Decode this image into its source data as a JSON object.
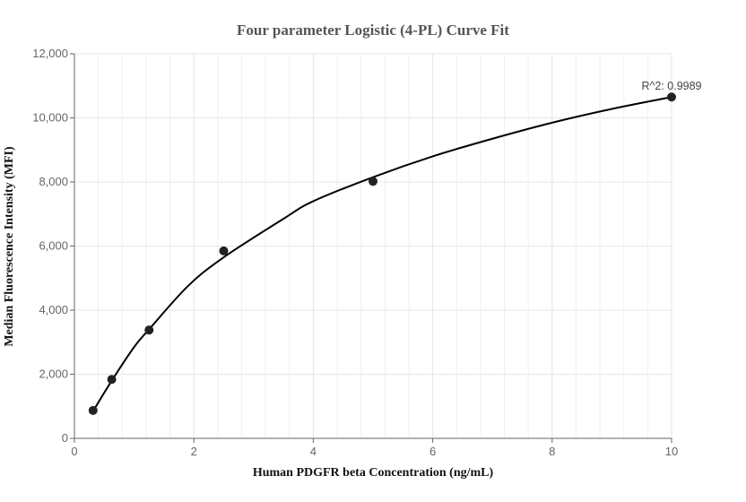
{
  "chart_data": {
    "type": "scatter",
    "title": "Four parameter Logistic (4-PL) Curve Fit",
    "xlabel": "Human PDGFR beta Concentration (ng/mL)",
    "ylabel": "Median Fluorescence Intensity (MFI)",
    "xlim": [
      0,
      10
    ],
    "ylim": [
      0,
      12000
    ],
    "x_ticks": [
      0,
      2,
      4,
      6,
      8,
      10
    ],
    "x_tick_labels": [
      "0",
      "2",
      "4",
      "6",
      "8",
      "10"
    ],
    "y_ticks": [
      0,
      2000,
      4000,
      6000,
      8000,
      10000,
      12000
    ],
    "y_tick_labels": [
      "0",
      "2,000",
      "4,000",
      "6,000",
      "8,000",
      "10,000",
      "12,000"
    ],
    "grid": true,
    "points": {
      "x": [
        0.3125,
        0.625,
        1.25,
        2.5,
        5,
        10
      ],
      "y": [
        870,
        1840,
        3380,
        5850,
        8020,
        10650
      ]
    },
    "fit_curve": {
      "x": [
        0.3125,
        0.625,
        1.0,
        1.25,
        1.9,
        2.5,
        3.5,
        4.0,
        5,
        6,
        7,
        8,
        9,
        10
      ],
      "y": [
        850,
        1800,
        2850,
        3400,
        4750,
        5650,
        6850,
        7400,
        8150,
        8800,
        9350,
        9850,
        10280,
        10650
      ]
    },
    "annotation": "R^2: 0.9989",
    "colors": {
      "point": "#222222",
      "curve": "#000000",
      "grid": "#e6e6e6",
      "axis": "#666666"
    }
  }
}
